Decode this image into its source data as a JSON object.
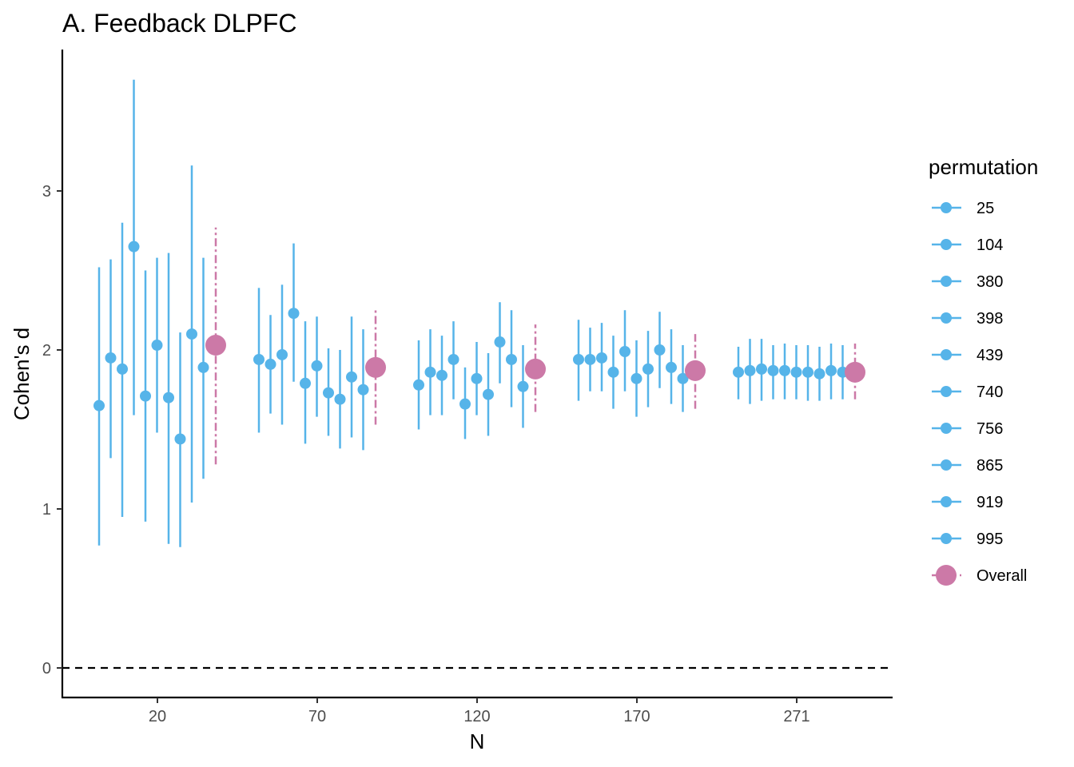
{
  "chart_data": {
    "type": "scatter",
    "title": "A. Feedback DLPFC",
    "xlabel": "N",
    "ylabel": "Cohen's d",
    "ylim": [
      -0.18,
      3.87
    ],
    "yticks": [
      0,
      1,
      2,
      3
    ],
    "reference_line": {
      "y": 0,
      "style": "dashed"
    },
    "grid": false,
    "legend": {
      "title": "permutation",
      "position": "right"
    },
    "colors": {
      "permutation": "#56B4E9",
      "overall": "#CC79A7"
    },
    "groups": [
      {
        "label": "20",
        "permutations": [
          {
            "name": "25",
            "d": 1.65,
            "lo": 0.77,
            "hi": 2.52
          },
          {
            "name": "104",
            "d": 1.95,
            "lo": 1.32,
            "hi": 2.57
          },
          {
            "name": "380",
            "d": 1.88,
            "lo": 0.95,
            "hi": 2.8
          },
          {
            "name": "398",
            "d": 2.65,
            "lo": 1.59,
            "hi": 3.7
          },
          {
            "name": "439",
            "d": 1.71,
            "lo": 0.92,
            "hi": 2.5
          },
          {
            "name": "740",
            "d": 2.03,
            "lo": 1.48,
            "hi": 2.58
          },
          {
            "name": "756",
            "d": 1.7,
            "lo": 0.78,
            "hi": 2.61
          },
          {
            "name": "865",
            "d": 1.44,
            "lo": 0.76,
            "hi": 2.11
          },
          {
            "name": "919",
            "d": 2.1,
            "lo": 1.04,
            "hi": 3.16
          },
          {
            "name": "995",
            "d": 1.89,
            "lo": 1.19,
            "hi": 2.58
          }
        ],
        "overall": {
          "d": 2.03,
          "lo": 1.28,
          "hi": 2.77
        }
      },
      {
        "label": "70",
        "permutations": [
          {
            "name": "25",
            "d": 1.94,
            "lo": 1.48,
            "hi": 2.39
          },
          {
            "name": "104",
            "d": 1.91,
            "lo": 1.6,
            "hi": 2.22
          },
          {
            "name": "380",
            "d": 1.97,
            "lo": 1.53,
            "hi": 2.41
          },
          {
            "name": "398",
            "d": 2.23,
            "lo": 1.8,
            "hi": 2.67
          },
          {
            "name": "439",
            "d": 1.79,
            "lo": 1.41,
            "hi": 2.18
          },
          {
            "name": "740",
            "d": 1.9,
            "lo": 1.58,
            "hi": 2.21
          },
          {
            "name": "756",
            "d": 1.73,
            "lo": 1.46,
            "hi": 2.01
          },
          {
            "name": "865",
            "d": 1.69,
            "lo": 1.38,
            "hi": 2.0
          },
          {
            "name": "919",
            "d": 1.83,
            "lo": 1.45,
            "hi": 2.21
          },
          {
            "name": "995",
            "d": 1.75,
            "lo": 1.37,
            "hi": 2.13
          }
        ],
        "overall": {
          "d": 1.89,
          "lo": 1.53,
          "hi": 2.25
        }
      },
      {
        "label": "120",
        "permutations": [
          {
            "name": "25",
            "d": 1.78,
            "lo": 1.5,
            "hi": 2.06
          },
          {
            "name": "104",
            "d": 1.86,
            "lo": 1.59,
            "hi": 2.13
          },
          {
            "name": "380",
            "d": 1.84,
            "lo": 1.59,
            "hi": 2.09
          },
          {
            "name": "398",
            "d": 1.94,
            "lo": 1.69,
            "hi": 2.18
          },
          {
            "name": "439",
            "d": 1.66,
            "lo": 1.44,
            "hi": 1.89
          },
          {
            "name": "740",
            "d": 1.82,
            "lo": 1.59,
            "hi": 2.05
          },
          {
            "name": "756",
            "d": 1.72,
            "lo": 1.46,
            "hi": 1.98
          },
          {
            "name": "865",
            "d": 2.05,
            "lo": 1.79,
            "hi": 2.3
          },
          {
            "name": "919",
            "d": 1.94,
            "lo": 1.64,
            "hi": 2.25
          },
          {
            "name": "995",
            "d": 1.77,
            "lo": 1.51,
            "hi": 2.03
          }
        ],
        "overall": {
          "d": 1.88,
          "lo": 1.61,
          "hi": 2.16
        }
      },
      {
        "label": "170",
        "permutations": [
          {
            "name": "25",
            "d": 1.94,
            "lo": 1.68,
            "hi": 2.19
          },
          {
            "name": "104",
            "d": 1.94,
            "lo": 1.74,
            "hi": 2.14
          },
          {
            "name": "380",
            "d": 1.95,
            "lo": 1.74,
            "hi": 2.17
          },
          {
            "name": "398",
            "d": 1.86,
            "lo": 1.63,
            "hi": 2.09
          },
          {
            "name": "439",
            "d": 1.99,
            "lo": 1.74,
            "hi": 2.25
          },
          {
            "name": "740",
            "d": 1.82,
            "lo": 1.58,
            "hi": 2.06
          },
          {
            "name": "756",
            "d": 1.88,
            "lo": 1.64,
            "hi": 2.12
          },
          {
            "name": "865",
            "d": 2.0,
            "lo": 1.76,
            "hi": 2.24
          },
          {
            "name": "919",
            "d": 1.89,
            "lo": 1.66,
            "hi": 2.13
          },
          {
            "name": "995",
            "d": 1.82,
            "lo": 1.61,
            "hi": 2.03
          }
        ],
        "overall": {
          "d": 1.87,
          "lo": 1.63,
          "hi": 2.1
        }
      },
      {
        "label": "271",
        "permutations": [
          {
            "name": "25",
            "d": 1.86,
            "lo": 1.69,
            "hi": 2.02
          },
          {
            "name": "104",
            "d": 1.87,
            "lo": 1.66,
            "hi": 2.07
          },
          {
            "name": "380",
            "d": 1.88,
            "lo": 1.68,
            "hi": 2.07
          },
          {
            "name": "398",
            "d": 1.87,
            "lo": 1.69,
            "hi": 2.03
          },
          {
            "name": "439",
            "d": 1.87,
            "lo": 1.69,
            "hi": 2.04
          },
          {
            "name": "740",
            "d": 1.86,
            "lo": 1.69,
            "hi": 2.03
          },
          {
            "name": "756",
            "d": 1.86,
            "lo": 1.68,
            "hi": 2.03
          },
          {
            "name": "865",
            "d": 1.85,
            "lo": 1.68,
            "hi": 2.02
          },
          {
            "name": "919",
            "d": 1.87,
            "lo": 1.69,
            "hi": 2.04
          },
          {
            "name": "995",
            "d": 1.86,
            "lo": 1.69,
            "hi": 2.03
          }
        ],
        "overall": {
          "d": 1.86,
          "lo": 1.69,
          "hi": 2.04
        }
      }
    ],
    "legend_entries": [
      "25",
      "104",
      "380",
      "398",
      "439",
      "740",
      "756",
      "865",
      "919",
      "995",
      "Overall"
    ]
  }
}
